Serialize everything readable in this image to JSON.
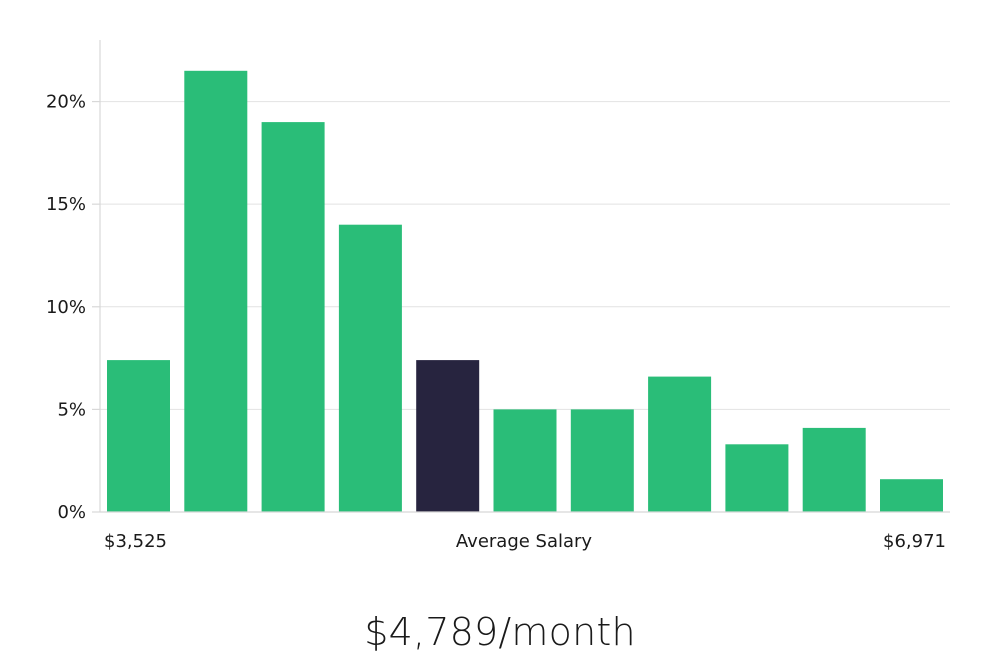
{
  "chart_data": {
    "type": "bar",
    "categories": [
      "",
      "",
      "",
      "",
      "",
      "",
      "",
      "",
      "",
      "",
      ""
    ],
    "values": [
      7.4,
      21.5,
      19.0,
      14.0,
      7.4,
      5.0,
      5.0,
      6.6,
      3.3,
      4.1,
      1.6
    ],
    "highlight_index": 4,
    "ylim": [
      0,
      23
    ],
    "yticks": [
      0,
      5,
      10,
      15,
      20
    ],
    "ytick_format": "{v}%",
    "grid": true,
    "colors": {
      "bar": "#2abd78",
      "highlight": "#27243f"
    },
    "x_labels": {
      "left": "$3,525",
      "center": "Average Salary",
      "right": "$6,971"
    }
  },
  "summary": {
    "salary": "$4,789/month"
  }
}
